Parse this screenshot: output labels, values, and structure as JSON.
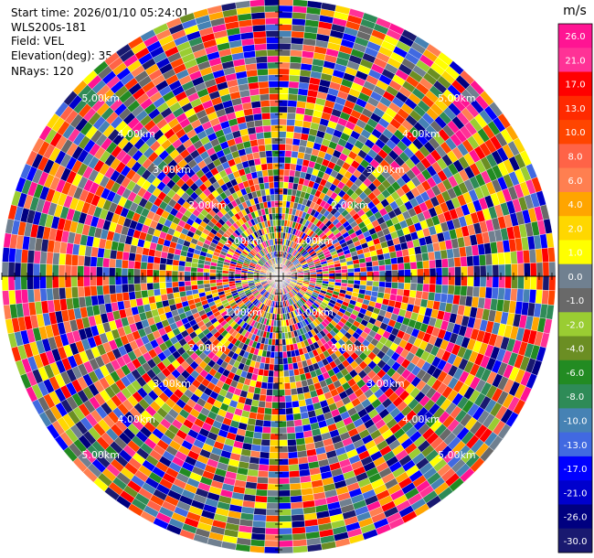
{
  "header": {
    "start_time": "Start time: 2026/01/10 05:24:01",
    "instrument": "WLS200s-181",
    "field": "Field: VEL",
    "elevation": "Elevation(deg): 35.00",
    "nrays": "NRays: 120"
  },
  "chart_data": {
    "type": "heatmap",
    "projection": "polar-ppi",
    "field": "VEL",
    "n_rays": 120,
    "elevation_deg": 35.0,
    "range_rings_km": [
      1.0,
      2.0,
      3.0,
      4.0,
      5.0
    ],
    "range_ring_labels": [
      "1.00km",
      "2.00km",
      "3.00km",
      "4.00km",
      "5.00km"
    ],
    "max_range_km": 5.5,
    "colorbar": {
      "unit": "m/s",
      "ticks": [
        "26.0",
        "21.0",
        "17.0",
        "13.0",
        "10.0",
        "8.0",
        "6.0",
        "4.0",
        "2.0",
        "1.0",
        "0.0",
        "-1.0",
        "-2.0",
        "-4.0",
        "-6.0",
        "-8.0",
        "-10.0",
        "-13.0",
        "-17.0",
        "-21.0",
        "-26.0",
        "-30.0"
      ],
      "colors": [
        "#ff1493",
        "#ff3296",
        "#ff0000",
        "#ff2a00",
        "#ff4500",
        "#ff6347",
        "#ff7f50",
        "#ffa500",
        "#ffd700",
        "#ffff00",
        "#708090",
        "#696969",
        "#9acd32",
        "#6b8e23",
        "#228b22",
        "#2e8b57",
        "#4682b4",
        "#4169e1",
        "#0000ff",
        "#0000cd",
        "#000080",
        "#191970"
      ]
    }
  }
}
